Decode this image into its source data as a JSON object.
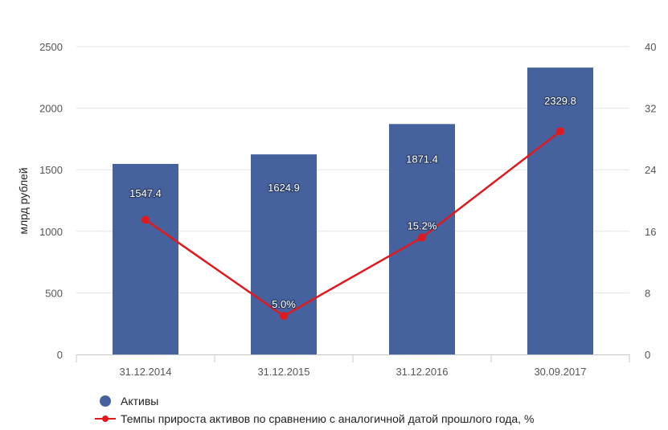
{
  "chart_data": {
    "type": "bar",
    "categories": [
      "31.12.2014",
      "31.12.2015",
      "31.12.2016",
      "30.09.2017"
    ],
    "series": [
      {
        "name": "Активы",
        "chart": "bar",
        "axis": "left",
        "values": [
          1547.4,
          1624.9,
          1871.4,
          2329.8
        ],
        "labels": [
          "1547.4",
          "1624.9",
          "1871.4",
          "2329.8"
        ],
        "color": "#46629e"
      },
      {
        "name": "Темпы прироста активов по сравнению с аналогичной датой прошлого года, %",
        "chart": "line",
        "axis": "right",
        "values": [
          17.5,
          5.0,
          15.2,
          29.0
        ],
        "labels": [
          "",
          "5.0%",
          "15.2%",
          ""
        ],
        "color": "#e0191e"
      }
    ],
    "ylabel": "млрд рублей",
    "xlabel": "",
    "title": "",
    "ylim": [
      0,
      2500
    ],
    "yticks": [
      0,
      500,
      1000,
      1500,
      2000,
      2500
    ],
    "y2lim": [
      0,
      40
    ],
    "y2ticks": [
      0,
      8,
      16,
      24,
      32,
      40
    ],
    "grid": true,
    "legend": "bottom-left"
  }
}
